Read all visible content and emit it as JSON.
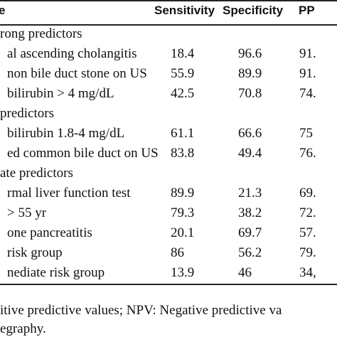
{
  "table": {
    "header": [
      "e",
      "Sensitivity",
      "Specificity",
      "PP"
    ],
    "rows": [
      [
        "rong predictors"
      ],
      [
        "al ascending cholangitis",
        "18.4",
        "96.6",
        "91."
      ],
      [
        "non bile duct stone on US",
        "55.9",
        "89.9",
        "91."
      ],
      [
        "bilirubin > 4 mg/dL",
        "42.5",
        "70.8",
        "74."
      ],
      [
        "predictors"
      ],
      [
        "bilirubin 1.8-4 mg/dL",
        "61.1",
        "66.6",
        "75"
      ],
      [
        "ed common bile duct on US",
        "83.8",
        "49.4",
        "76."
      ],
      [
        "ate predictors"
      ],
      [
        "rmal liver function test",
        "89.9",
        "21.3",
        "69."
      ],
      [
        "> 55 yr",
        "79.3",
        "38.2",
        "72."
      ],
      [
        "one pancreatitis",
        "20.1",
        "69.7",
        "57."
      ],
      [
        "risk group",
        "86",
        "56.2",
        "79."
      ],
      [
        "nediate risk group",
        "13.9",
        "46",
        "34,"
      ]
    ]
  },
  "footnote": [
    "itive predictive values; NPV: Negative predictive va",
    "egraphy."
  ]
}
